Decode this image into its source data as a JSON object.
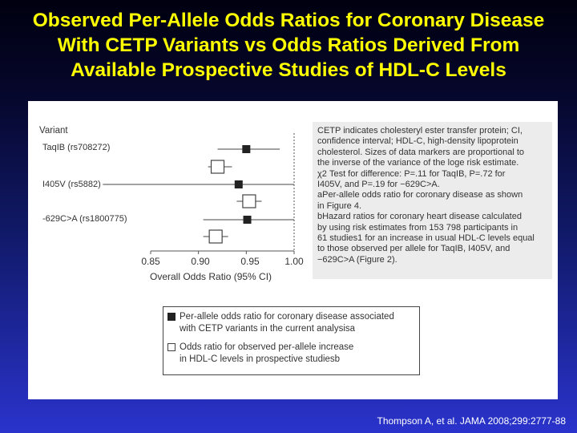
{
  "title_lines": [
    "Observed Per-Allele Odds Ratios for Coronary Disease",
    "With CETP Variants vs Odds Ratios Derived From",
    "Available Prospective Studies of HDL-C Levels"
  ],
  "citation": "Thompson A, et al. JAMA 2008;299:2777-88",
  "colors": {
    "title": "#ffff00",
    "ink": "#333333",
    "note_bg": "#ececec",
    "marker": "#222222"
  },
  "chart_data": {
    "type": "scatter",
    "subtype": "forest-plot",
    "row_header": "Variant",
    "xlabel": "Overall Odds Ratio (95% CI)",
    "xlim": [
      0.85,
      1.0
    ],
    "xticks": [
      "0.85",
      "0.90",
      "0.95",
      "1.00"
    ],
    "reference_line": 1.0,
    "variants": [
      {
        "label": "TaqIB (rs708272)",
        "observed": {
          "or": 0.95,
          "lo": 0.92,
          "hi": 0.985
        },
        "predicted": {
          "or": 0.92,
          "lo": 0.91,
          "hi": 0.935
        }
      },
      {
        "label": "I405V (rs5882)",
        "observed": {
          "or": 0.942,
          "lo": 0.8,
          "hi": 1.0
        },
        "predicted": {
          "or": 0.953,
          "lo": 0.94,
          "hi": 0.966
        }
      },
      {
        "label": "-629C>A (rs1800775)",
        "observed": {
          "or": 0.951,
          "lo": 0.905,
          "hi": 1.0
        },
        "predicted": {
          "or": 0.918,
          "lo": 0.905,
          "hi": 0.931
        }
      }
    ],
    "legend": [
      {
        "marker": "filled-square",
        "text": "Per-allele odds ratio for coronary disease associated\nwith CETP variants in the current analysisa"
      },
      {
        "marker": "open-square",
        "text": "Odds ratio for observed per-allele increase\nin HDL-C levels in prospective studiesb"
      }
    ],
    "note": "CETP indicates cholesteryl ester transfer protein; CI,\nconfidence interval; HDL-C, high-density lipoprotein\ncholesterol. Sizes of data markers are proportional to\nthe inverse of the variance of the loge risk estimate.\nχ2 Test for difference: P=.11 for TaqIB, P=.72 for\nI405V, and P=.19 for −629C>A.\naPer-allele odds ratio for coronary disease as shown\nin Figure 4.\nbHazard ratios for coronary heart disease calculated\nby using risk estimates from 153 798 participants in\n61 studies1 for an increase in usual HDL-C levels equal\nto those observed per allele for TaqIB, I405V, and\n−629C>A (Figure 2)."
  }
}
